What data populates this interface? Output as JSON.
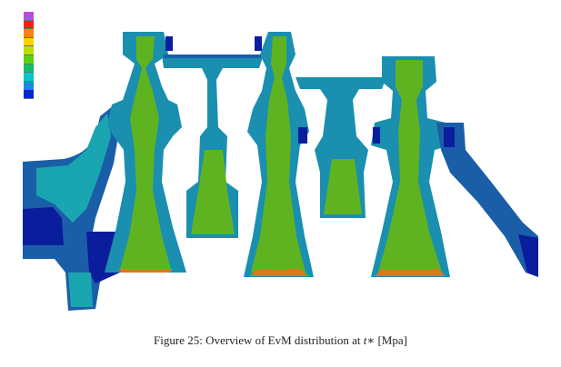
{
  "caption": {
    "label": "Figure 25:",
    "text": "Overview of EvM distribution at",
    "symbol": "t∗",
    "unit": "[Mpa]"
  },
  "colors": {
    "legend": [
      "#c04ae0",
      "#ff1a1a",
      "#ff8000",
      "#ffd000",
      "#b8e000",
      "#5ad010",
      "#10c060",
      "#00c8c8",
      "#0090e0",
      "#0028d8"
    ],
    "deep_blue": "#0a1d9c",
    "blue": "#1b5ea8",
    "teal": "#1a8fb0",
    "cyan": "#1aa6b0",
    "green": "#5fb320",
    "yellow_green": "#8fbd1c",
    "orange": "#d97a1a",
    "background": "#ffffff"
  }
}
